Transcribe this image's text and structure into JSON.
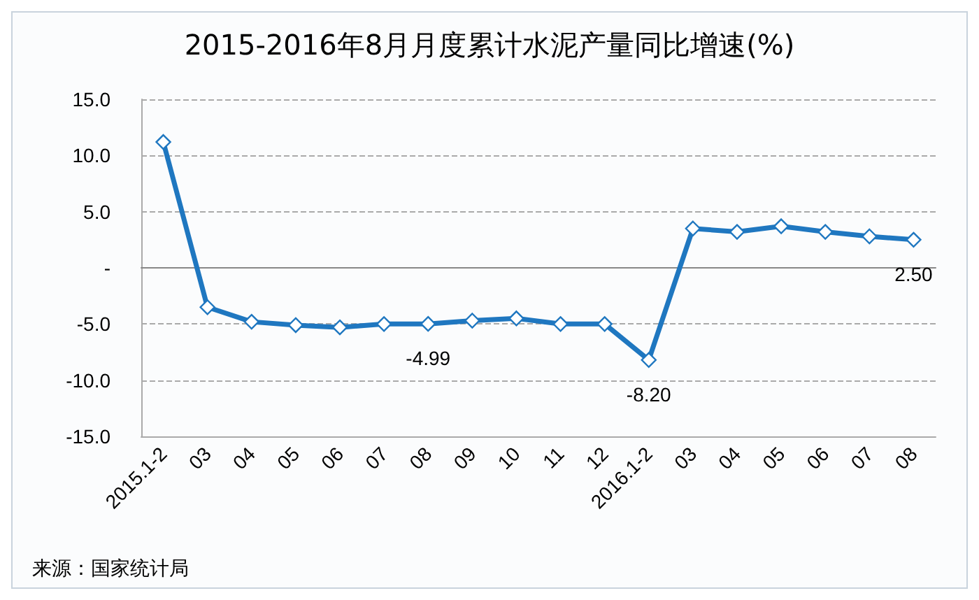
{
  "chart_data": {
    "type": "line",
    "title": "2015-2016年8月月度累计水泥产量同比增速(%)",
    "categories": [
      "2015.1-2",
      "03",
      "04",
      "05",
      "06",
      "07",
      "08",
      "09",
      "10",
      "11",
      "12",
      "2016.1-2",
      "03",
      "04",
      "05",
      "06",
      "07",
      "08"
    ],
    "series": [
      {
        "color": "#1f77c0",
        "values": [
          11.2,
          -3.5,
          -4.8,
          -5.1,
          -5.3,
          -5.0,
          -4.99,
          -4.7,
          -4.5,
          -5.0,
          -5.0,
          -8.2,
          3.5,
          3.2,
          3.7,
          3.2,
          2.8,
          2.5
        ],
        "value_labels": [
          null,
          null,
          null,
          null,
          null,
          null,
          "-4.99",
          null,
          null,
          null,
          null,
          "-8.20",
          null,
          null,
          null,
          null,
          null,
          "2.50"
        ]
      }
    ],
    "ylim": [
      -15,
      15
    ],
    "yticks": [
      {
        "value": -15,
        "label": "-15.0"
      },
      {
        "value": -10,
        "label": "-10.0"
      },
      {
        "value": -5,
        "label": "-5.0"
      },
      {
        "value": 0,
        "label": "-"
      },
      {
        "value": 5,
        "label": "5.0"
      },
      {
        "value": 10,
        "label": "10.0"
      },
      {
        "value": 15,
        "label": "15.0"
      }
    ],
    "grid": "y",
    "marker": "diamond",
    "line_style": "solid",
    "annotations": [
      "来源：国家统计局"
    ]
  }
}
